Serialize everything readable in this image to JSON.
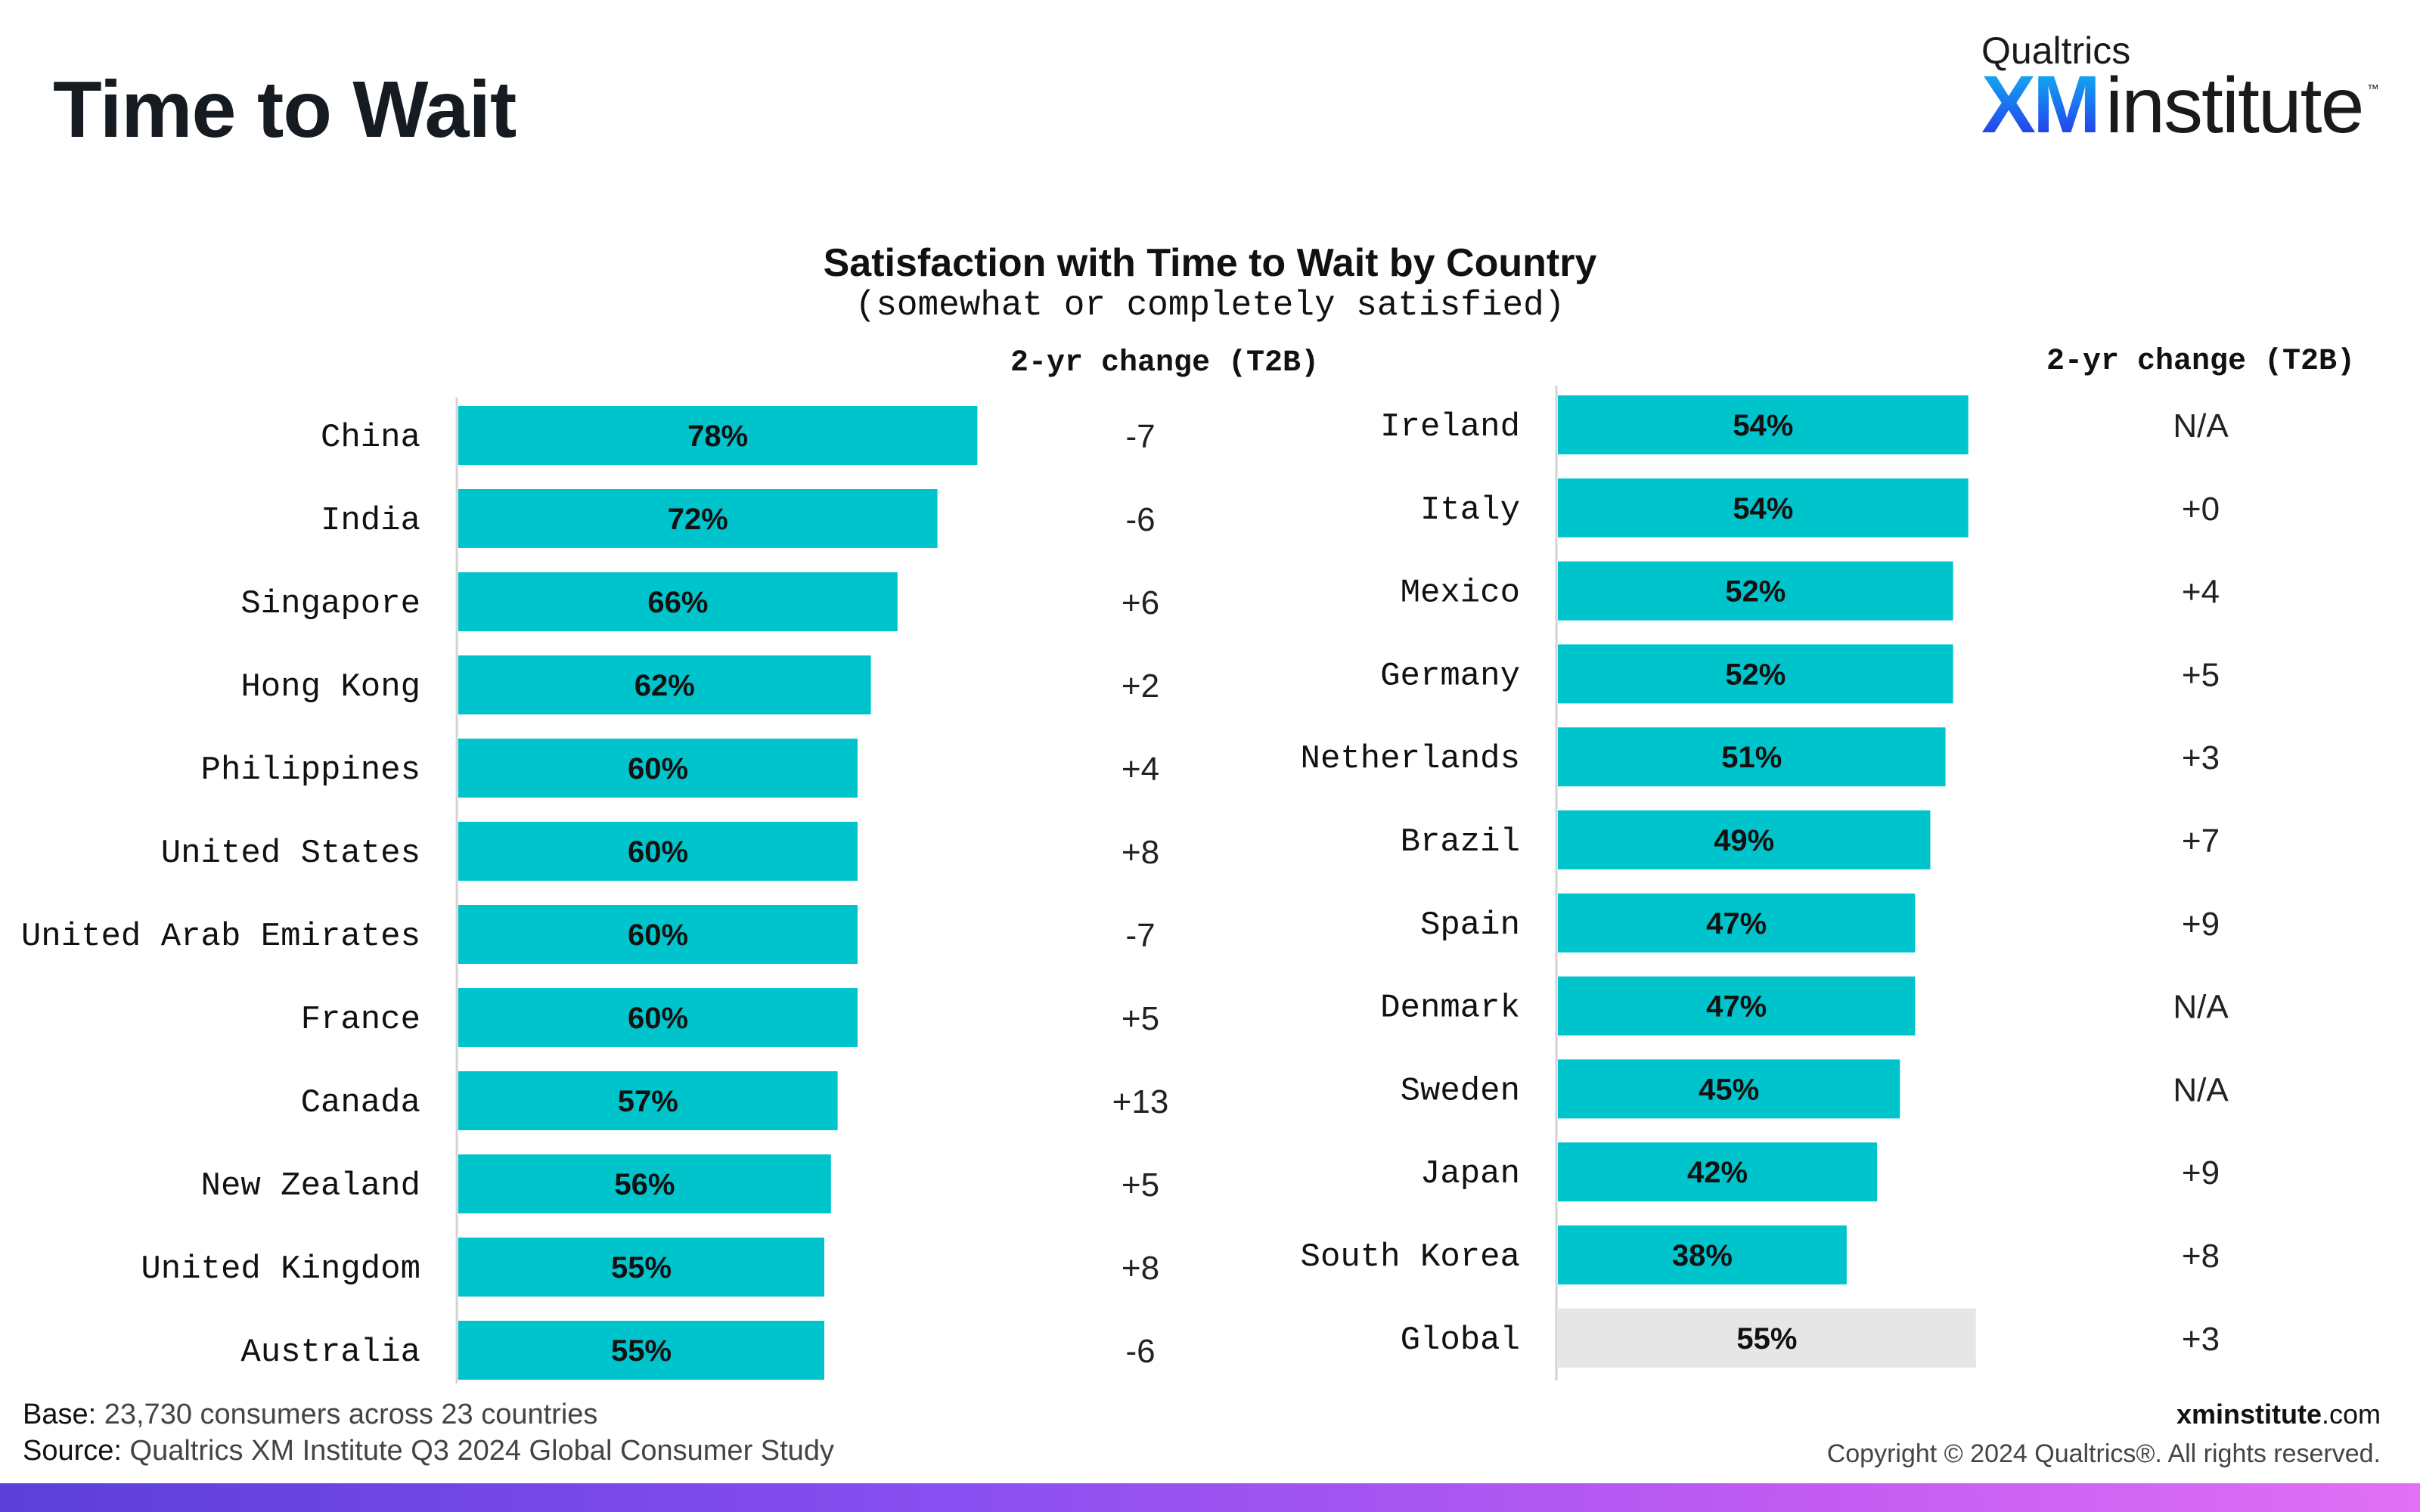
{
  "page": {
    "title": "Time to Wait"
  },
  "logo": {
    "top_text": "Qualtrics",
    "brand": "XM",
    "word": "institute",
    "tm": "™"
  },
  "chart_data": {
    "type": "bar",
    "orientation": "horizontal",
    "title": "Satisfaction with Time to Wait by Country",
    "subtitle": "(somewhat or completely satisfied)",
    "change_header": "2-yr change (T2B)",
    "value_axis_max": 100,
    "colors": {
      "bar": "#00c4cc",
      "global_bar": "#e6e6e6",
      "axis": "#d3d3d3"
    },
    "panels": [
      {
        "rows": [
          {
            "label": "China",
            "value": 78,
            "display": "78%",
            "change": "-7"
          },
          {
            "label": "India",
            "value": 72,
            "display": "72%",
            "change": "-6"
          },
          {
            "label": "Singapore",
            "value": 66,
            "display": "66%",
            "change": "+6"
          },
          {
            "label": "Hong Kong",
            "value": 62,
            "display": "62%",
            "change": "+2"
          },
          {
            "label": "Philippines",
            "value": 60,
            "display": "60%",
            "change": "+4"
          },
          {
            "label": "United States",
            "value": 60,
            "display": "60%",
            "change": "+8"
          },
          {
            "label": "United Arab Emirates",
            "value": 60,
            "display": "60%",
            "change": "-7"
          },
          {
            "label": "France",
            "value": 60,
            "display": "60%",
            "change": "+5"
          },
          {
            "label": "Canada",
            "value": 57,
            "display": "57%",
            "change": "+13"
          },
          {
            "label": "New Zealand",
            "value": 56,
            "display": "56%",
            "change": "+5"
          },
          {
            "label": "United Kingdom",
            "value": 55,
            "display": "55%",
            "change": "+8"
          },
          {
            "label": "Australia",
            "value": 55,
            "display": "55%",
            "change": "-6"
          }
        ]
      },
      {
        "rows": [
          {
            "label": "Ireland",
            "value": 54,
            "display": "54%",
            "change": "N/A"
          },
          {
            "label": "Italy",
            "value": 54,
            "display": "54%",
            "change": "+0"
          },
          {
            "label": "Mexico",
            "value": 52,
            "display": "52%",
            "change": "+4"
          },
          {
            "label": "Germany",
            "value": 52,
            "display": "52%",
            "change": "+5"
          },
          {
            "label": "Netherlands",
            "value": 51,
            "display": "51%",
            "change": "+3"
          },
          {
            "label": "Brazil",
            "value": 49,
            "display": "49%",
            "change": "+7"
          },
          {
            "label": "Spain",
            "value": 47,
            "display": "47%",
            "change": "+9"
          },
          {
            "label": "Denmark",
            "value": 47,
            "display": "47%",
            "change": "N/A"
          },
          {
            "label": "Sweden",
            "value": 45,
            "display": "45%",
            "change": "N/A"
          },
          {
            "label": "Japan",
            "value": 42,
            "display": "42%",
            "change": "+9"
          },
          {
            "label": "South Korea",
            "value": 38,
            "display": "38%",
            "change": "+8"
          },
          {
            "label": "Global",
            "value": 55,
            "display": "55%",
            "change": "+3",
            "highlight": true
          }
        ]
      }
    ]
  },
  "footer": {
    "base_prefix": "Base:",
    "base_text": " 23,730 consumers across 23 countries",
    "source_prefix": "Source:",
    "source_text": " Qualtrics XM Institute Q3 2024 Global Consumer Study",
    "site_bold": "xminstitute",
    "site_rest": ".com",
    "copyright": "Copyright © 2024 Qualtrics®. All rights reserved."
  }
}
